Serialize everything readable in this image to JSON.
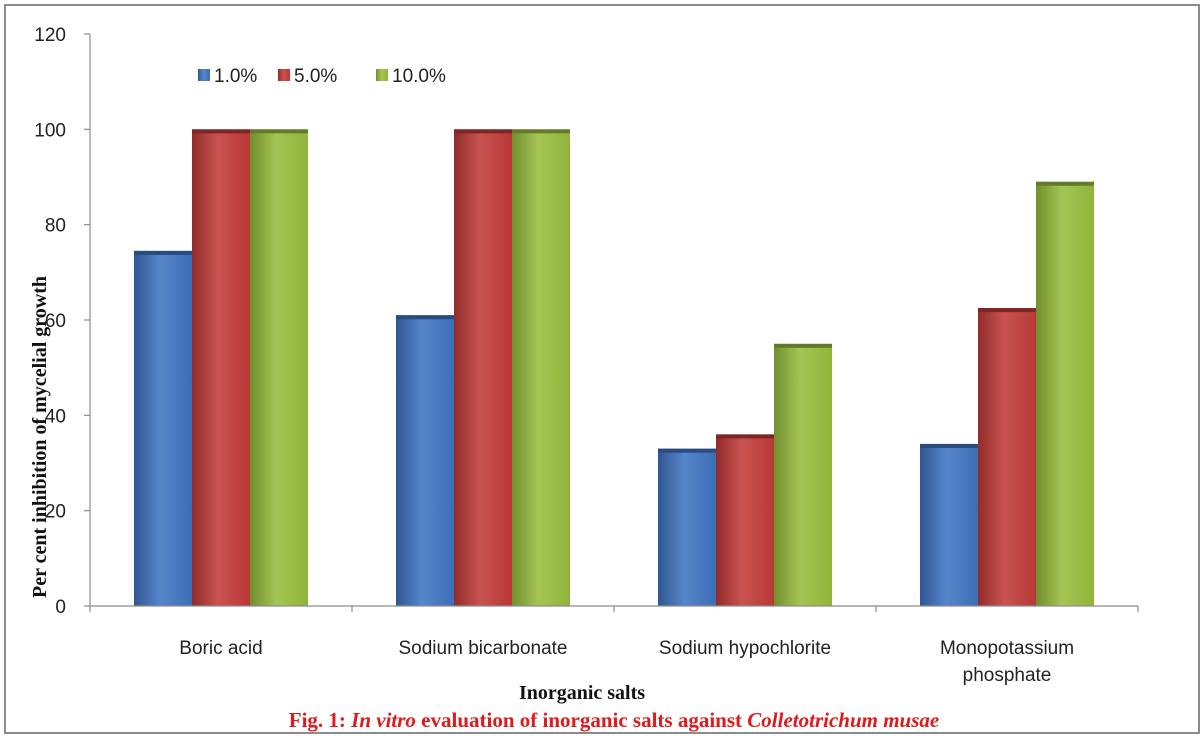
{
  "chart_data": {
    "type": "bar",
    "title": "",
    "xlabel": "Inorganic salts",
    "ylabel": "Per cent inhibition of mycelial growth",
    "ylim": [
      0,
      120
    ],
    "yticks": [
      "0",
      "20",
      "40",
      "60",
      "80",
      "100",
      "120"
    ],
    "categories": [
      [
        "Boric acid"
      ],
      [
        "Sodium bicarbonate"
      ],
      [
        "Sodium hypochlorite"
      ],
      [
        "Monopotassium",
        "phosphate"
      ]
    ],
    "series": [
      {
        "name": "1.0%",
        "color": "#3f74c2",
        "values": [
          74.5,
          61,
          33,
          34
        ]
      },
      {
        "name": "5.0%",
        "color": "#c23b38",
        "values": [
          100,
          100,
          36,
          62.5
        ]
      },
      {
        "name": "10.0%",
        "color": "#98bd3d",
        "values": [
          100,
          100,
          55,
          89
        ]
      }
    ],
    "legend_position": "top-left",
    "grid": false
  },
  "caption": {
    "prefix": "Fig. 1: ",
    "italic1": "In vitro",
    "middle": " evaluation of inorganic salts against ",
    "italic2": "Colletotrichum musae"
  }
}
